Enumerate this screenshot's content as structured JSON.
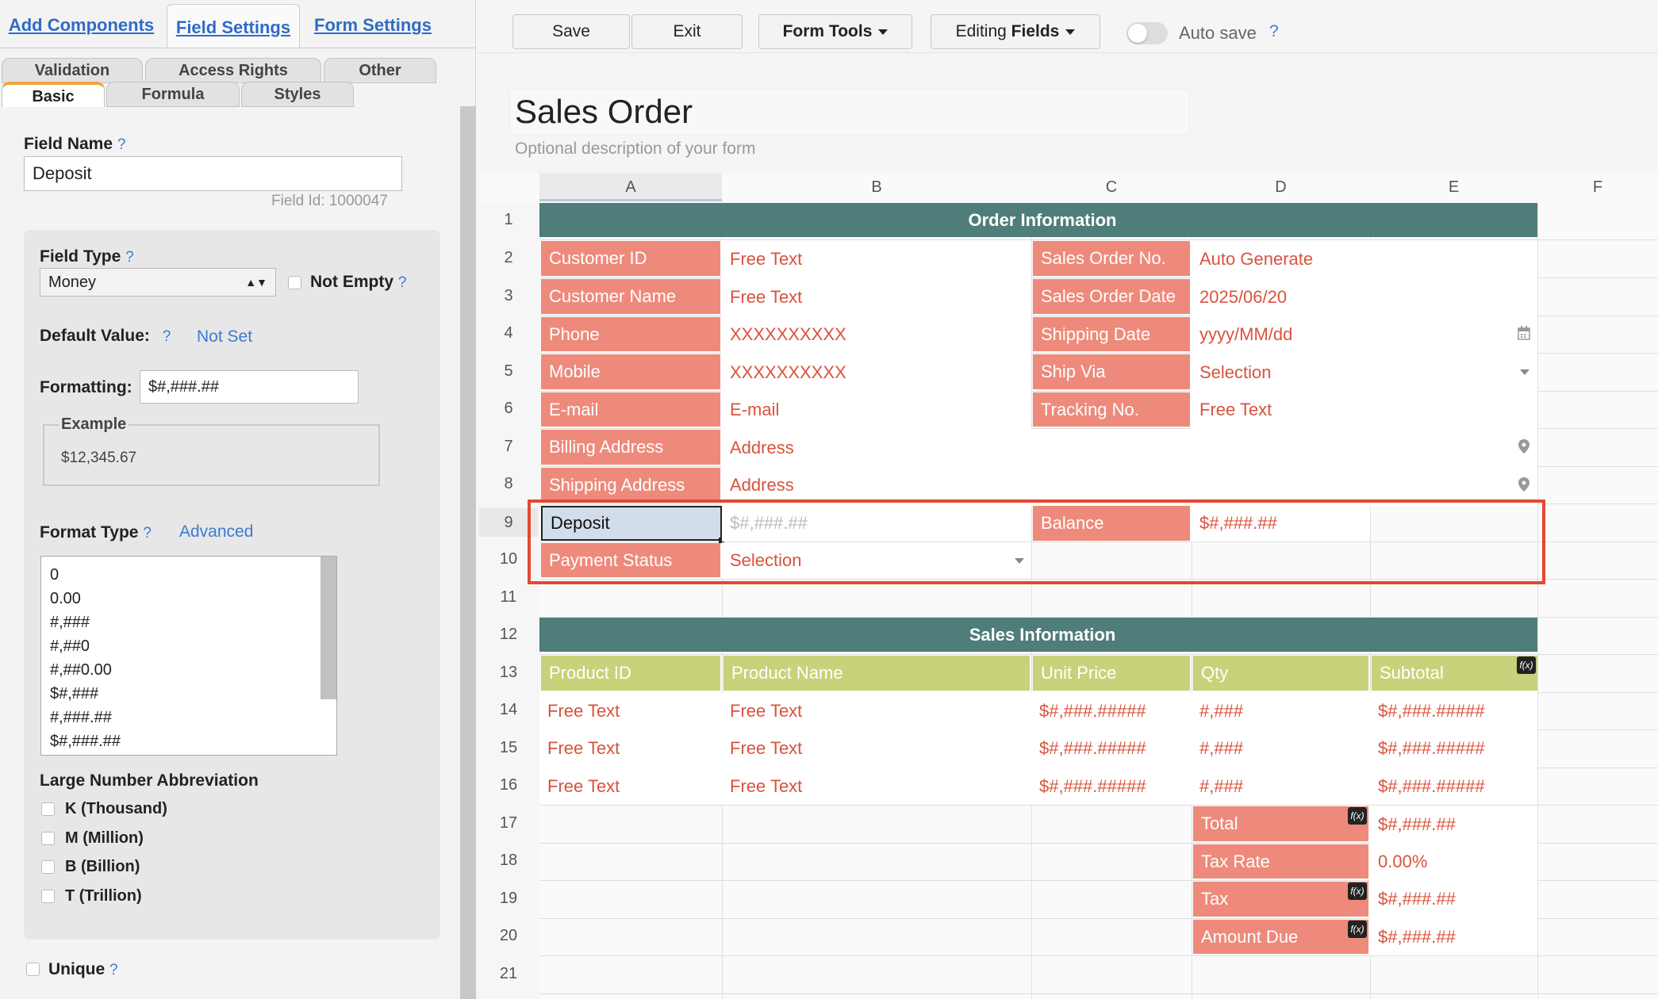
{
  "left_panel": {
    "top_tabs": [
      "Add Components",
      "Field Settings",
      "Form Settings"
    ],
    "sub_tabs_back": [
      "Validation",
      "Access Rights",
      "Other"
    ],
    "sub_tabs_front": [
      "Basic",
      "Formula",
      "Styles"
    ],
    "field_name_label": "Field Name",
    "help": "?",
    "field_name_value": "Deposit",
    "field_id": "Field Id: 1000047",
    "field_type_label": "Field Type",
    "field_type_value": "Money",
    "not_empty_label": "Not Empty",
    "default_value_label": "Default Value:",
    "default_value_link": "Not Set",
    "formatting_label": "Formatting:",
    "formatting_value": "$#,###.##",
    "example_label": "Example",
    "example_value": "$12,345.67",
    "format_type_label": "Format Type",
    "format_type_link": "Advanced",
    "format_types": [
      "0",
      "0.00",
      "#,###",
      "#,##0",
      "#,##0.00",
      "$#,###",
      "#,###.##",
      "$#,###.##"
    ],
    "abbrev_label": "Large Number Abbreviation",
    "abbrevs": [
      "K (Thousand)",
      "M (Million)",
      "B (Billion)",
      "T (Trillion)"
    ],
    "unique_label": "Unique"
  },
  "toolbar": {
    "save": "Save",
    "exit": "Exit",
    "form_tools": "Form Tools",
    "editing_prefix": "Editing ",
    "editing_bold": "Fields",
    "autosave": "Auto save",
    "help": "?"
  },
  "form": {
    "title": "Sales Order",
    "description": "Optional description of your form"
  },
  "columns": [
    "A",
    "B",
    "C",
    "D",
    "E",
    "F"
  ],
  "rows": [
    "1",
    "2",
    "3",
    "4",
    "5",
    "6",
    "7",
    "8",
    "9",
    "10",
    "11",
    "12",
    "13",
    "14",
    "15",
    "16",
    "17",
    "18",
    "19",
    "20",
    "21"
  ],
  "sheet": {
    "order_header": "Order Information",
    "sales_header": "Sales Information",
    "left_labels": [
      "Customer ID",
      "Customer Name",
      "Phone",
      "Mobile",
      "E-mail",
      "Billing Address",
      "Shipping Address"
    ],
    "left_values": [
      "Free Text",
      "Free Text",
      "XXXXXXXXXX",
      "XXXXXXXXXX",
      "E-mail",
      "Address",
      "Address"
    ],
    "right_labels": [
      "Sales Order No.",
      "Sales Order Date",
      "Shipping Date",
      "Ship Via",
      "Tracking No."
    ],
    "right_values": [
      "Auto Generate",
      "2025/06/20",
      "yyyy/MM/dd",
      "Selection",
      "Free Text"
    ],
    "deposit_label": "Deposit",
    "deposit_value": "$#,###.##",
    "balance_label": "Balance",
    "balance_value": "$#,###.##",
    "payment_label": "Payment Status",
    "payment_value": "Selection",
    "sales_columns": [
      "Product ID",
      "Product Name",
      "Unit Price",
      "Qty",
      "Subtotal"
    ],
    "sales_rows": [
      [
        "Free Text",
        "Free Text",
        "$#,###.#####",
        "#,###",
        "$#,###.#####"
      ],
      [
        "Free Text",
        "Free Text",
        "$#,###.#####",
        "#,###",
        "$#,###.#####"
      ],
      [
        "Free Text",
        "Free Text",
        "$#,###.#####",
        "#,###",
        "$#,###.#####"
      ]
    ],
    "totals_labels": [
      "Total",
      "Tax Rate",
      "Tax",
      "Amount Due"
    ],
    "totals_values": [
      "$#,###.##",
      "0.00%",
      "$#,###.##",
      "$#,###.##"
    ],
    "fx": "f(x)"
  },
  "colors": {
    "salmon": "#ee8a7b",
    "teal": "#4f7d79",
    "olive": "#c7d27a",
    "red_text": "#d9533c",
    "link_blue": "#3a7bd5",
    "highlight_red": "#e04a33"
  }
}
